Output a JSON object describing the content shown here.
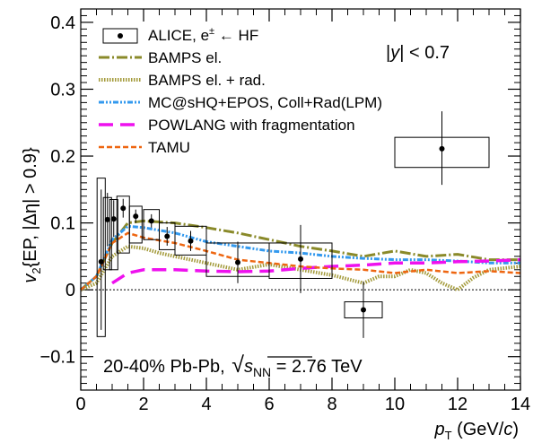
{
  "chart_data": {
    "type": "line",
    "ylabel_parts": {
      "v": "v",
      "sub2": "2",
      "rest": "{EP, |Δη| > 0.9}"
    },
    "xlabel_parts": {
      "p": "p",
      "subT": "T",
      "rest": " (GeV/",
      "c": "c",
      "close": ")"
    },
    "xlim": [
      0,
      14
    ],
    "ylim": [
      -0.15,
      0.42
    ],
    "xticks": [
      0,
      2,
      4,
      6,
      8,
      10,
      12,
      14
    ],
    "xtick_labels": [
      "0",
      "2",
      "4",
      "6",
      "8",
      "10",
      "12",
      "14"
    ],
    "yticks": [
      -0.1,
      0,
      0.1,
      0.2,
      0.3,
      0.4
    ],
    "ytick_labels": [
      "−0.1",
      "0",
      "0.1",
      "0.2",
      "0.3",
      "0.4"
    ],
    "grid": false,
    "legend_position": "top-left",
    "annotations": {
      "rapidity": {
        "bar1": "|",
        "y": "y",
        "bar2": "|",
        "rest": " < 0.7"
      },
      "system": {
        "prefix": "20-40% Pb-Pb, ",
        "s": "s",
        "sub": "NN",
        "suffix": " = 2.76 TeV"
      }
    },
    "data_series": {
      "name": "ALICE, e± ← HF",
      "name_parts": {
        "main": "ALICE, e",
        "sup": "±",
        "rest": " ←  HF"
      },
      "color": "#000000",
      "points": [
        {
          "x": 0.65,
          "y": 0.042,
          "xerr": 0.13,
          "stat_lo": -0.06,
          "stat_hi": 0.15,
          "sys_lo": -0.07,
          "sys_hi": 0.167
        },
        {
          "x": 0.85,
          "y": 0.105,
          "xerr": 0.13,
          "stat_lo": 0.065,
          "stat_hi": 0.145,
          "sys_lo": 0.03,
          "sys_hi": 0.138
        },
        {
          "x": 1.05,
          "y": 0.106,
          "xerr": 0.13,
          "stat_lo": 0.079,
          "stat_hi": 0.134,
          "sys_lo": 0.03,
          "sys_hi": 0.135
        },
        {
          "x": 1.35,
          "y": 0.122,
          "xerr": 0.2,
          "stat_lo": 0.108,
          "stat_hi": 0.136,
          "sys_lo": 0.055,
          "sys_hi": 0.14
        },
        {
          "x": 1.75,
          "y": 0.11,
          "xerr": 0.2,
          "stat_lo": 0.1,
          "stat_hi": 0.12,
          "sys_lo": 0.07,
          "sys_hi": 0.125
        },
        {
          "x": 2.25,
          "y": 0.103,
          "xerr": 0.25,
          "stat_lo": 0.093,
          "stat_hi": 0.113,
          "sys_lo": 0.075,
          "sys_hi": 0.12
        },
        {
          "x": 2.75,
          "y": 0.08,
          "xerr": 0.25,
          "stat_lo": 0.066,
          "stat_hi": 0.094,
          "sys_lo": 0.06,
          "sys_hi": 0.1
        },
        {
          "x": 3.5,
          "y": 0.073,
          "xerr": 0.5,
          "stat_lo": 0.058,
          "stat_hi": 0.088,
          "sys_lo": 0.052,
          "sys_hi": 0.095
        },
        {
          "x": 5.0,
          "y": 0.041,
          "xerr": 1.0,
          "stat_lo": 0.01,
          "stat_hi": 0.072,
          "sys_lo": 0.02,
          "sys_hi": 0.07
        },
        {
          "x": 7.0,
          "y": 0.046,
          "xerr": 1.0,
          "stat_lo": -0.005,
          "stat_hi": 0.097,
          "sys_lo": 0.017,
          "sys_hi": 0.07
        },
        {
          "x": 9.0,
          "y": -0.03,
          "xerr": 0.6,
          "stat_lo": -0.072,
          "stat_hi": 0.012,
          "sys_lo": -0.042,
          "sys_hi": -0.018
        },
        {
          "x": 11.5,
          "y": 0.211,
          "xerr": 1.5,
          "stat_lo": 0.157,
          "stat_hi": 0.267,
          "sys_lo": 0.183,
          "sys_hi": 0.228
        }
      ]
    },
    "series": [
      {
        "name": "BAMPS el.",
        "color": "#8a8a2a",
        "dash": "12 3 2 3",
        "width": 3,
        "x": [
          0,
          0.5,
          1.0,
          1.5,
          2.0,
          3.0,
          4.0,
          5.0,
          6.0,
          7.0,
          8.0,
          9.0,
          10.0,
          11.0,
          12.0,
          13.0,
          14.0
        ],
        "y": [
          0.0,
          0.02,
          0.07,
          0.1,
          0.103,
          0.1,
          0.093,
          0.085,
          0.075,
          0.065,
          0.058,
          0.05,
          0.058,
          0.05,
          0.053,
          0.045,
          0.045
        ]
      },
      {
        "name": "BAMPS el. + rad.",
        "color": "#a39a3a",
        "dash": "1.5 1.5",
        "width": 4,
        "x": [
          0,
          0.5,
          1.0,
          1.5,
          2.0,
          2.5,
          3.0,
          4.0,
          5.0,
          6.0,
          7.0,
          8.0,
          9.0,
          9.5,
          10.0,
          10.5,
          11.0,
          11.5,
          12.0,
          12.5,
          13.0,
          14.0
        ],
        "y": [
          0.0,
          0.01,
          0.05,
          0.065,
          0.062,
          0.055,
          0.05,
          0.04,
          0.03,
          0.038,
          0.03,
          0.022,
          0.01,
          0.02,
          0.02,
          0.03,
          0.025,
          0.01,
          0.0,
          0.018,
          0.03,
          0.035
        ]
      },
      {
        "name": "MC@sHQ+EPOS, Coll+Rad(LPM)",
        "color": "#3399ee",
        "dash": "6 2 2 2 2 2",
        "width": 3,
        "x": [
          0,
          0.5,
          1.0,
          1.5,
          2.0,
          3.0,
          4.0,
          5.0,
          6.0,
          7.0,
          8.0,
          9.0,
          10.0,
          11.0,
          12.0,
          13.0,
          14.0
        ],
        "y": [
          0.0,
          0.02,
          0.075,
          0.095,
          0.093,
          0.085,
          0.072,
          0.065,
          0.058,
          0.055,
          0.05,
          0.047,
          0.045,
          0.045,
          0.043,
          0.04,
          0.04
        ]
      },
      {
        "name": "POWLANG with fragmentation",
        "color": "#ee11ee",
        "dash": "16 8",
        "width": 3.5,
        "x": [
          1.0,
          1.5,
          2.0,
          3.0,
          4.0,
          5.0,
          6.0,
          7.0,
          8.0,
          9.0,
          10.0,
          11.0,
          12.0,
          13.0,
          14.0
        ],
        "y": [
          0.01,
          0.025,
          0.03,
          0.03,
          0.028,
          0.027,
          0.028,
          0.032,
          0.035,
          0.037,
          0.04,
          0.04,
          0.042,
          0.043,
          0.045
        ]
      },
      {
        "name": "TAMU",
        "color": "#ee6611",
        "dash": "6 3",
        "width": 2.5,
        "x": [
          0,
          0.5,
          1.0,
          1.5,
          2.0,
          3.0,
          4.0,
          5.0,
          6.0,
          7.0,
          8.0,
          9.0,
          10.0,
          11.0,
          12.0,
          13.0,
          14.0
        ],
        "y": [
          0.0,
          0.02,
          0.07,
          0.085,
          0.078,
          0.07,
          0.058,
          0.045,
          0.04,
          0.035,
          0.032,
          0.03,
          0.025,
          0.03,
          0.025,
          0.028,
          0.025
        ]
      }
    ]
  }
}
